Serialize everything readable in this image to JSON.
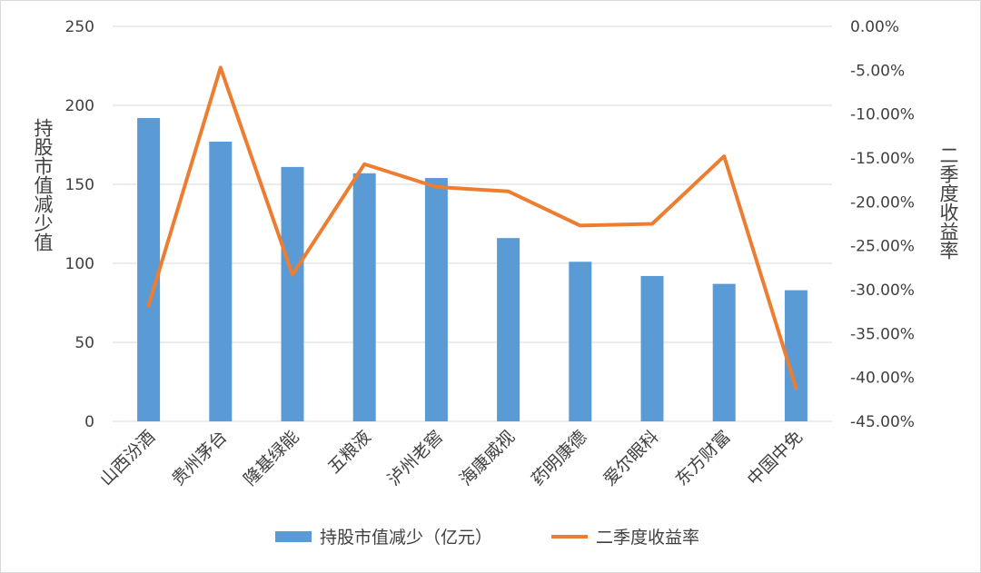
{
  "chart_data": {
    "type": "bar+line",
    "categories": [
      "山西汾酒",
      "贵州茅台",
      "隆基绿能",
      "五粮液",
      "泸州老窖",
      "海康威视",
      "药明康德",
      "爱尔眼科",
      "东方财富",
      "中国中免"
    ],
    "series": [
      {
        "name": "持股市值减少（亿元）",
        "type": "bar",
        "axis": "left",
        "color": "#5b9bd5",
        "values": [
          192,
          177,
          161,
          157,
          154,
          116,
          101,
          92,
          87,
          83
        ]
      },
      {
        "name": "二季度收益率",
        "type": "line",
        "axis": "right",
        "color": "#ed7d31",
        "values": [
          -31.8,
          -4.7,
          -28.3,
          -15.7,
          -18.3,
          -18.8,
          -22.7,
          -22.5,
          -14.8,
          -41.2
        ]
      }
    ],
    "y_left": {
      "label": "持股市值减少值",
      "ylim": [
        0,
        250
      ],
      "ticks": [
        "0",
        "50",
        "100",
        "150",
        "200",
        "250"
      ]
    },
    "y_right": {
      "label": "二季度收益率",
      "ylim": [
        -45,
        0
      ],
      "ticks": [
        "0.00%",
        "-5.00%",
        "-10.00%",
        "-15.00%",
        "-20.00%",
        "-25.00%",
        "-30.00%",
        "-35.00%",
        "-40.00%",
        "-45.00%"
      ]
    },
    "grid": true,
    "legend_position": "bottom"
  }
}
